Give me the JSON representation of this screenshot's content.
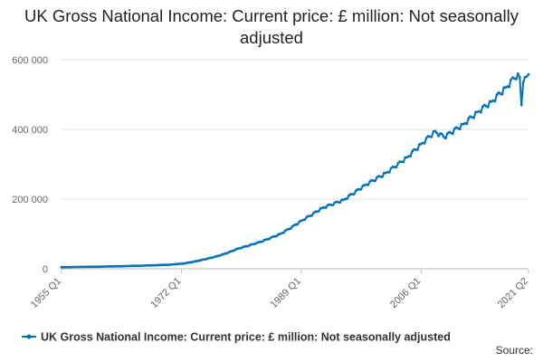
{
  "chart_data": {
    "type": "line",
    "title": "UK Gross National Income: Current price: £ million: Not seasonally adjusted",
    "xlabel": "",
    "ylabel": "",
    "x_start": "1955 Q1",
    "x_end": "2021 Q2",
    "x_ticks": [
      "1955 Q1",
      "1972 Q1",
      "1989 Q1",
      "2006 Q1",
      "2021 Q2"
    ],
    "y_ticks": [
      0,
      200000,
      400000,
      600000
    ],
    "y_tick_labels": [
      "0",
      "200 000",
      "400 000",
      "600 000"
    ],
    "ylim": [
      0,
      600000
    ],
    "grid": true,
    "legend_position": "bottom",
    "series": [
      {
        "name": "UK Gross National Income: Current price: £ million: Not seasonally adjusted",
        "color": "#0072bc",
        "anchors": [
          {
            "x": "1955 Q1",
            "y": 4600
          },
          {
            "x": "1960 Q1",
            "y": 6000
          },
          {
            "x": "1965 Q1",
            "y": 8200
          },
          {
            "x": "1970 Q1",
            "y": 11500
          },
          {
            "x": "1972 Q1",
            "y": 14500
          },
          {
            "x": "1975 Q1",
            "y": 26000
          },
          {
            "x": "1978 Q1",
            "y": 42000
          },
          {
            "x": "1980 Q1",
            "y": 58000
          },
          {
            "x": "1983 Q1",
            "y": 76000
          },
          {
            "x": "1986 Q1",
            "y": 100000
          },
          {
            "x": "1989 Q1",
            "y": 138000
          },
          {
            "x": "1992 Q1",
            "y": 175000
          },
          {
            "x": "1995 Q1",
            "y": 198000
          },
          {
            "x": "1998 Q1",
            "y": 240000
          },
          {
            "x": "2001 Q1",
            "y": 275000
          },
          {
            "x": "2004 Q1",
            "y": 320000
          },
          {
            "x": "2006 Q1",
            "y": 358000
          },
          {
            "x": "2008 Q1",
            "y": 395000
          },
          {
            "x": "2009 Q2",
            "y": 378000
          },
          {
            "x": "2012 Q1",
            "y": 415000
          },
          {
            "x": "2014 Q1",
            "y": 450000
          },
          {
            "x": "2016 Q1",
            "y": 480000
          },
          {
            "x": "2018 Q1",
            "y": 520000
          },
          {
            "x": "2019 Q4",
            "y": 560000
          },
          {
            "x": "2020 Q1",
            "y": 550000
          },
          {
            "x": "2020 Q2",
            "y": 470000
          },
          {
            "x": "2020 Q3",
            "y": 535000
          },
          {
            "x": "2020 Q4",
            "y": 550000
          },
          {
            "x": "2021 Q1",
            "y": 552000
          },
          {
            "x": "2021 Q2",
            "y": 558000
          }
        ],
        "seasonal_amplitude": [
          0.012,
          -0.004,
          -0.018,
          0.01
        ]
      }
    ]
  },
  "source_label": "Source:"
}
